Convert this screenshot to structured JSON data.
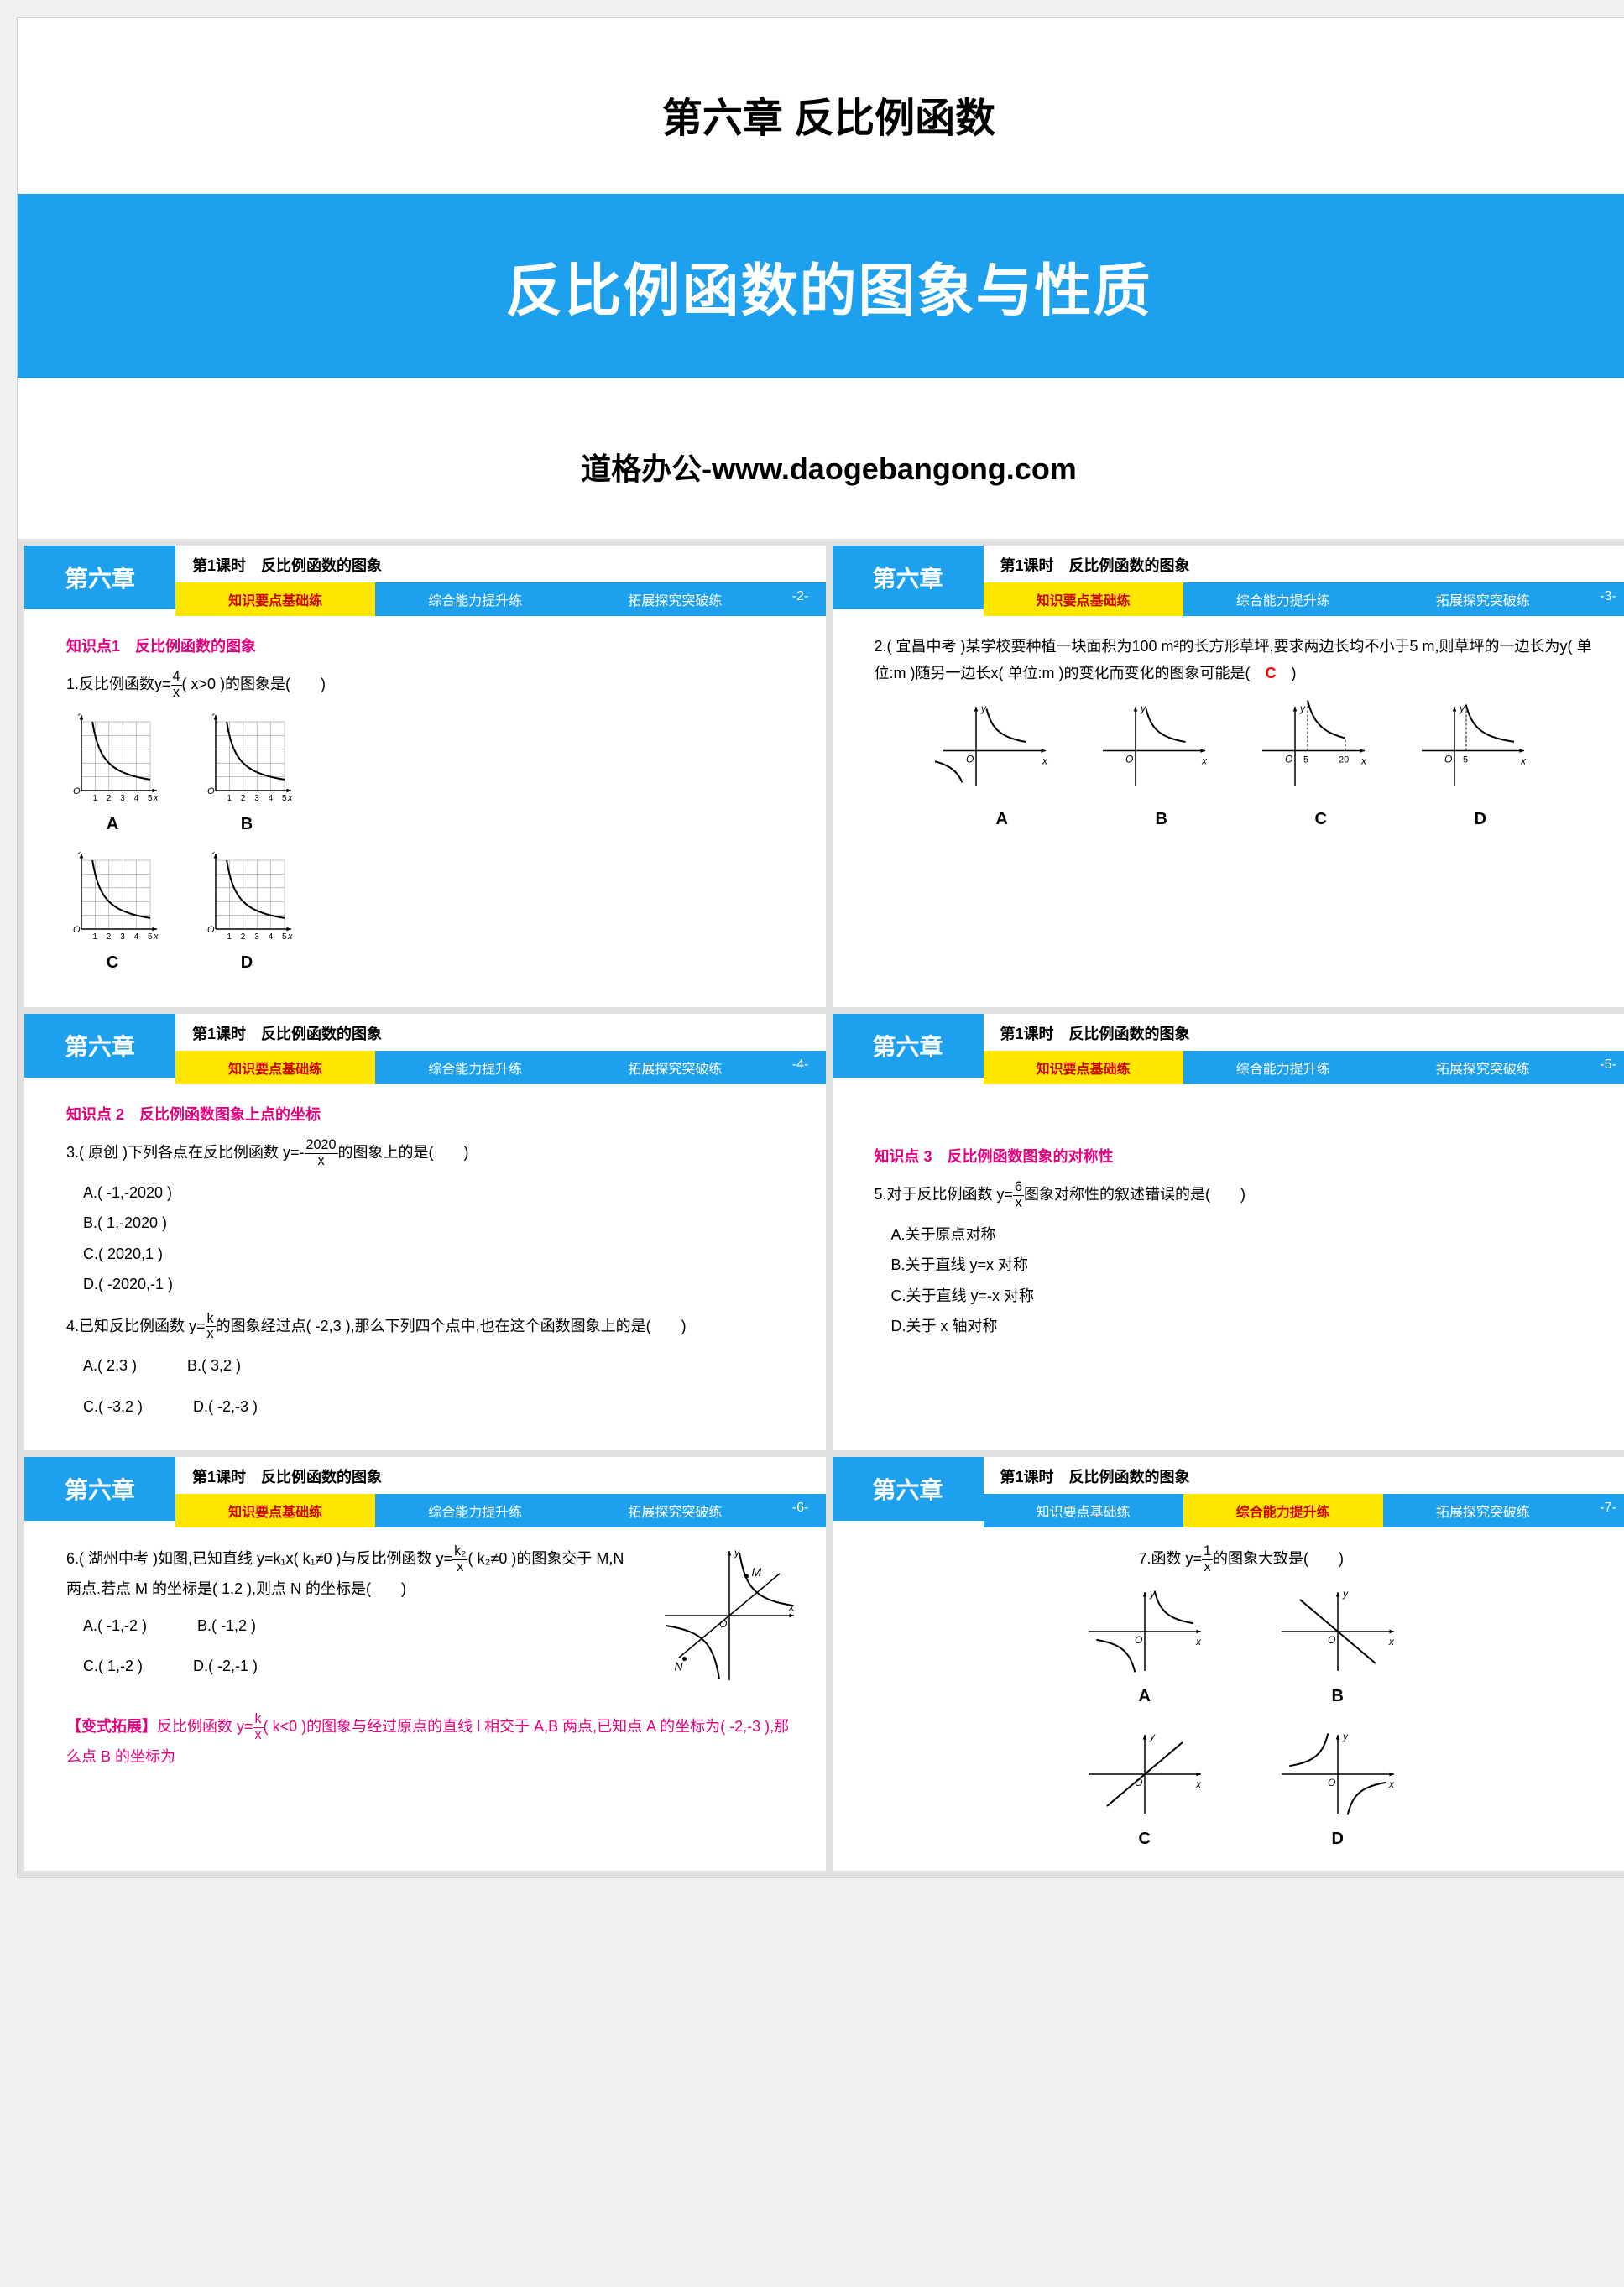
{
  "title_slide": {
    "chapter_title": "第六章  反比例函数",
    "main_title": "反比例函数的图象与性质",
    "banner_bg": "#1da0ee",
    "banner_text_color": "#ffffff",
    "watermark": "道格办公-www.daogebangong.com"
  },
  "common": {
    "chapter_label": "第六章",
    "lesson_title": "第1课时　反比例函数的图象",
    "chapter_bg": "#1da0ee",
    "chapter_text": "#ffffff",
    "tab1": "知识要点基础练",
    "tab2": "综合能力提升练",
    "tab3": "拓展探究突破练",
    "tab_active_bg": "#ffe600",
    "tab_active_text": "#cc0000",
    "tab_inactive_bg": "#1da0ee",
    "tab_inactive_text": "#ffffff",
    "page_num_bg": "#1da0ee"
  },
  "slides": [
    {
      "page": "-2-",
      "active_tab": 1,
      "knowledge_point": "知识点1　反比例函数的图象",
      "knowledge_color": "#e4007f",
      "q1_prefix": "1.反比例函数y=",
      "q1_num": "4",
      "q1_den": "x",
      "q1_suffix": "( x>0 )的图象是(　　)",
      "graph_labels": [
        "A",
        "B",
        "C",
        "D"
      ],
      "grid_graph": {
        "size": 110,
        "axis_color": "#000000",
        "grid_color": "#888888",
        "curve_color": "#000000",
        "xmax": 5,
        "ymax": 5,
        "curves": {
          "A": "decreasing",
          "B": "decreasing",
          "C": "decreasing",
          "D": "decreasing"
        }
      }
    },
    {
      "page": "-3-",
      "active_tab": 1,
      "q2_text": "2.( 宜昌中考 )某学校要种植一块面积为100 m²的长方形草坪,要求两边长均不小于5 m,则草坪的一边长为y( 单位:m )随另一边长x( 单位:m )的变化而变化的图象可能是(　",
      "q2_answer": "C",
      "q2_close": "　)",
      "answer_color": "#ff0000",
      "graph_labels": [
        "A",
        "B",
        "C",
        "D"
      ],
      "axis_graph": {
        "width": 140,
        "height": 110,
        "axis_color": "#000000",
        "curve_color": "#000000",
        "variants": {
          "A": {
            "quadrants": [
              1,
              3
            ],
            "marks": []
          },
          "B": {
            "quadrants": [
              1
            ],
            "marks": []
          },
          "C": {
            "quadrants": [
              1
            ],
            "marks": [
              "5",
              "20"
            ],
            "bounded": true
          },
          "D": {
            "quadrants": [
              1
            ],
            "marks": [
              "5"
            ],
            "bounded_upper": true
          }
        }
      }
    },
    {
      "page": "-4-",
      "active_tab": 1,
      "knowledge_point": "知识点 2　反比例函数图象上点的坐标",
      "knowledge_color": "#e4007f",
      "q3_prefix": "3.( 原创 )下列各点在反比例函数 y=-",
      "q3_num": "2020",
      "q3_den": "x",
      "q3_suffix": "的图象上的是(　　)",
      "q3_options": [
        "A.( -1,-2020 )",
        "B.( 1,-2020 )",
        "C.( 2020,1 )",
        "D.( -2020,-1 )"
      ],
      "q4_prefix": "4.已知反比例函数 y=",
      "q4_num": "k",
      "q4_den": "x",
      "q4_suffix": "的图象经过点( -2,3 ),那么下列四个点中,也在这个函数图象上的是(　　)",
      "q4_options": [
        "A.( 2,3 )",
        "B.( 3,2 )",
        "C.( -3,2 )",
        "D.( -2,-3 )"
      ]
    },
    {
      "page": "-5-",
      "active_tab": 1,
      "knowledge_point": "知识点 3　反比例函数图象的对称性",
      "knowledge_color": "#e4007f",
      "q5_prefix": "5.对于反比例函数 y=",
      "q5_num": "6",
      "q5_den": "x",
      "q5_suffix": "图象对称性的叙述错误的是(　　)",
      "q5_options": [
        "A.关于原点对称",
        "B.关于直线 y=x 对称",
        "C.关于直线 y=-x 对称",
        "D.关于 x 轴对称"
      ]
    },
    {
      "page": "-6-",
      "active_tab": 1,
      "q6_prefix": "6.( 湖州中考 )如图,已知直线 y=k₁x( k₁≠0 )与反比例函数 y=",
      "q6_num": "k₂",
      "q6_den": "x",
      "q6_suffix": "( k₂≠0 )的图象交于 M,N 两点.若点 M 的坐标是( 1,2 ),则点 N 的坐标是(　　)",
      "q6_options": [
        "A.( -1,-2 )",
        "B.( -1,2 )",
        "C.( 1,-2 )",
        "D.( -2,-1 )"
      ],
      "variant_label": "【变式拓展】",
      "variant_color": "#e4007f",
      "variant_prefix": "反比例函数 y=",
      "variant_num": "k",
      "variant_den": "x",
      "variant_suffix": "( k<0 )的图象与经过原点的直线 l 相交于 A,B 两点,已知点 A 的坐标为( -2,-3 ),那么点 B 的坐标为",
      "side_graph": {
        "width": 170,
        "height": 170,
        "axis_color": "#000000",
        "curve_color": "#000000",
        "labels": {
          "M": [
            0.55,
            0.2
          ],
          "N": [
            0.15,
            0.78
          ]
        }
      }
    },
    {
      "page": "-7-",
      "active_tab": 2,
      "q7_prefix": "7.函数 y=",
      "q7_num": "1",
      "q7_den": "x",
      "q7_suffix": "的图象大致是(　　)",
      "graph_labels": [
        "A",
        "B",
        "C",
        "D"
      ],
      "small_graph": {
        "width": 150,
        "height": 110,
        "axis_color": "#000000",
        "curve_color": "#000000",
        "variants": {
          "A": "quad13",
          "B": "quad1-line-down",
          "C": "quad1-line-up",
          "D": "quad24"
        }
      }
    }
  ]
}
